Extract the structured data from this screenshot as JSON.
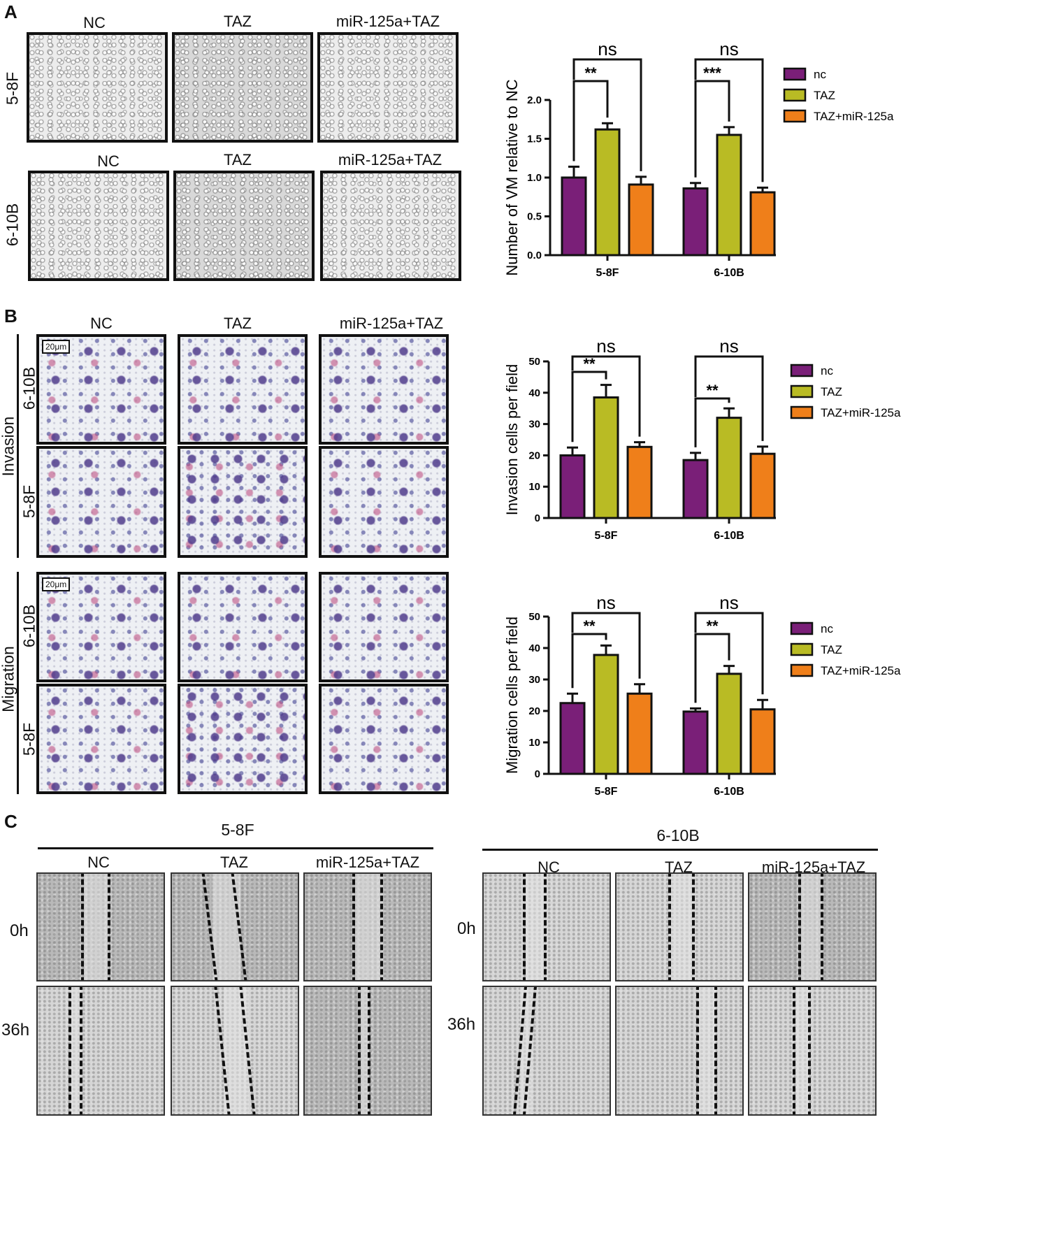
{
  "panelA": {
    "label": "A",
    "cols1": [
      "NC",
      "TAZ",
      "miR-125a+TAZ"
    ],
    "cols2": [
      "NC",
      "TAZ",
      "miR-125a+TAZ"
    ],
    "rows": [
      "5-8F",
      "6-10B"
    ]
  },
  "panelB": {
    "label": "B",
    "cols": [
      "NC",
      "TAZ",
      "miR-125a+TAZ"
    ],
    "groups": [
      "Invasion",
      "Migration"
    ],
    "rows": [
      "6-10B",
      "5-8F"
    ],
    "scalebar": "20μm"
  },
  "panelC": {
    "label": "C",
    "left_title": "5-8F",
    "right_title": "6-10B",
    "cols": [
      "NC",
      "TAZ",
      "miR-125a+TAZ"
    ],
    "times": [
      "0h",
      "36h"
    ]
  },
  "colors": {
    "nc": "#7a1f78",
    "TAZ": "#b9bb24",
    "TAZ+miR-125a": "#ef7f1a"
  },
  "chart_data": [
    {
      "type": "bar",
      "title": "",
      "ylabel": "Number of VM relative to NC",
      "xlabel": "",
      "ylim": [
        0,
        2.0
      ],
      "yticks": [
        "0.0",
        "0.5",
        "1.0",
        "1.5",
        "2.0"
      ],
      "ytick_values": [
        0,
        0.5,
        1.0,
        1.5,
        2.0
      ],
      "categories": [
        "5-8F",
        "6-10B"
      ],
      "series": [
        {
          "name": "nc",
          "values": [
            1.0,
            0.86
          ],
          "errors": [
            0.14,
            0.07
          ]
        },
        {
          "name": "TAZ",
          "values": [
            1.62,
            1.55
          ],
          "errors": [
            0.08,
            0.1
          ]
        },
        {
          "name": "TAZ+miR-125a",
          "values": [
            0.91,
            0.81
          ],
          "errors": [
            0.1,
            0.06
          ]
        }
      ],
      "significance": [
        {
          "category": "5-8F",
          "inner": "**",
          "outer": "ns"
        },
        {
          "category": "6-10B",
          "inner": "***",
          "outer": "ns"
        }
      ],
      "legend": "right"
    },
    {
      "type": "bar",
      "title": "",
      "ylabel": "Invasion cells per field",
      "xlabel": "",
      "ylim": [
        0,
        50
      ],
      "yticks": [
        "0",
        "10",
        "20",
        "30",
        "40",
        "50"
      ],
      "ytick_values": [
        0,
        10,
        20,
        30,
        40,
        50
      ],
      "categories": [
        "5-8F",
        "6-10B"
      ],
      "series": [
        {
          "name": "nc",
          "values": [
            20,
            18.5
          ],
          "errors": [
            2.5,
            2.3
          ]
        },
        {
          "name": "TAZ",
          "values": [
            38.5,
            32
          ],
          "errors": [
            4,
            3
          ]
        },
        {
          "name": "TAZ+miR-125a",
          "values": [
            22.7,
            20.5
          ],
          "errors": [
            1.5,
            2.3
          ]
        }
      ],
      "significance": [
        {
          "category": "5-8F",
          "inner": "**",
          "outer": "ns"
        },
        {
          "category": "6-10B",
          "inner": "**",
          "outer": "ns"
        }
      ],
      "legend": "right"
    },
    {
      "type": "bar",
      "title": "",
      "ylabel": "Migration cells per field",
      "xlabel": "",
      "ylim": [
        0,
        50
      ],
      "yticks": [
        "0",
        "10",
        "20",
        "30",
        "40",
        "50"
      ],
      "ytick_values": [
        0,
        10,
        20,
        30,
        40,
        50
      ],
      "categories": [
        "5-8F",
        "6-10B"
      ],
      "series": [
        {
          "name": "nc",
          "values": [
            22.5,
            19.8
          ],
          "errors": [
            3,
            1
          ]
        },
        {
          "name": "TAZ",
          "values": [
            37.8,
            31.8
          ],
          "errors": [
            3,
            2.5
          ]
        },
        {
          "name": "TAZ+miR-125a",
          "values": [
            25.5,
            20.5
          ],
          "errors": [
            3,
            3
          ]
        }
      ],
      "significance": [
        {
          "category": "5-8F",
          "inner": "**",
          "outer": "ns"
        },
        {
          "category": "6-10B",
          "inner": "**",
          "outer": "ns"
        }
      ],
      "legend": "right"
    }
  ]
}
